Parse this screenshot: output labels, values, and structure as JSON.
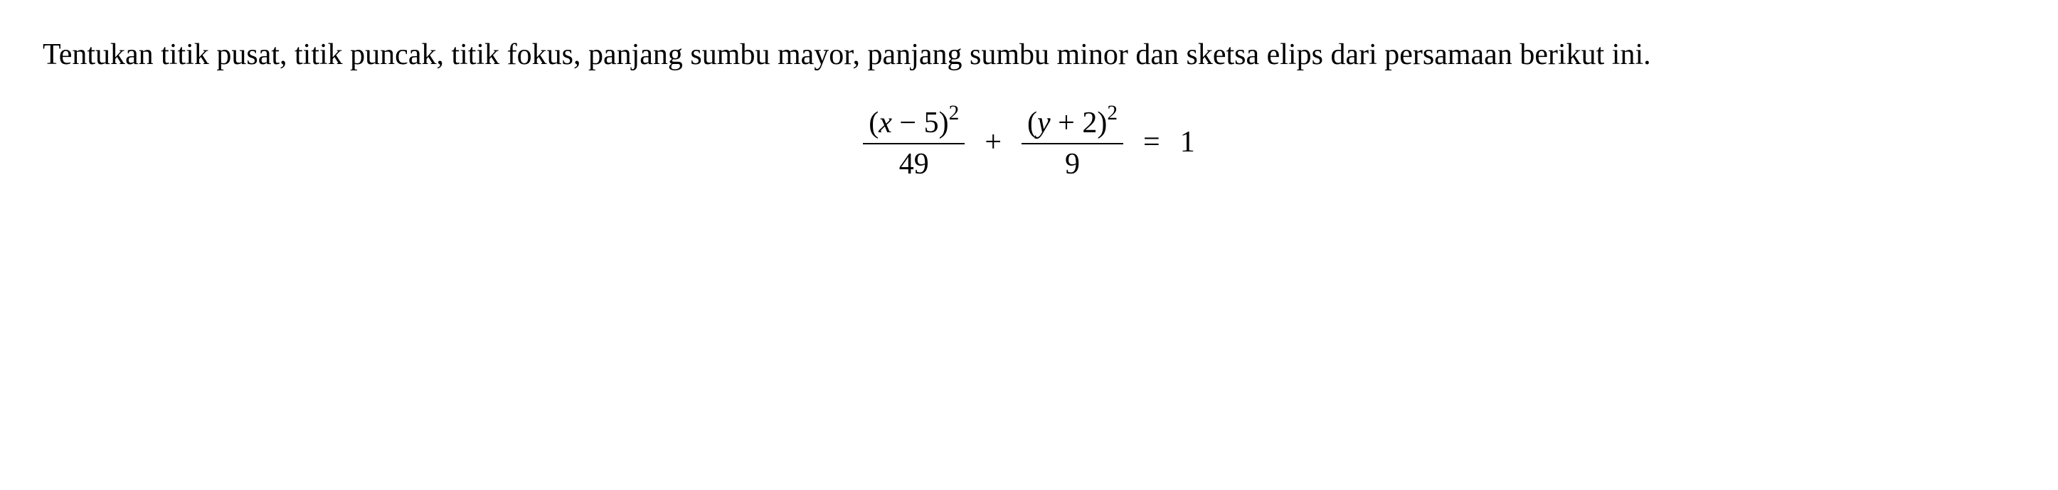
{
  "paragraph": {
    "text": "Tentukan titik pusat, titik puncak, titik fokus, panjang sumbu mayor, panjang sumbu minor dan sketsa elips dari persamaan berikut ini.",
    "fontsize": 42,
    "color": "#000000",
    "font_family": "Times New Roman",
    "line_height": 1.8,
    "text_align": "justify"
  },
  "equation": {
    "term1": {
      "numerator_open": "(",
      "numerator_var": "x",
      "numerator_op": " − 5)",
      "numerator_exp": "2",
      "denominator": "49"
    },
    "plus": "+",
    "term2": {
      "numerator_open": "(",
      "numerator_var": "y",
      "numerator_op": " + 2)",
      "numerator_exp": "2",
      "denominator": "9"
    },
    "equals": "=",
    "rhs": "1",
    "fontsize": 42,
    "color": "#000000"
  },
  "background_color": "#ffffff"
}
